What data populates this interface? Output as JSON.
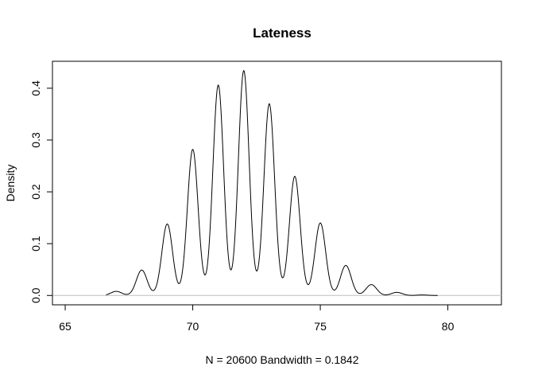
{
  "chart_data": {
    "type": "line",
    "title": "Lateness",
    "xlabel": "N = 20600   Bandwidth = 0.1842",
    "ylabel": "Density",
    "xlim": [
      64.5,
      82.1
    ],
    "ylim": [
      -0.018,
      0.452
    ],
    "xticks": [
      65,
      70,
      75,
      80
    ],
    "xtick_labels": [
      "65",
      "70",
      "75",
      "80"
    ],
    "yticks": [
      0.0,
      0.1,
      0.2,
      0.3,
      0.4
    ],
    "ytick_labels": [
      "0.0",
      "0.1",
      "0.2",
      "0.3",
      "0.4"
    ],
    "baseline": 0,
    "grid": false,
    "bandwidth": 0.1842,
    "series": [
      {
        "color": "#000000",
        "peaks_x": [
          67,
          68,
          69,
          70,
          71,
          72,
          73,
          74,
          75,
          76,
          77,
          78,
          79
        ],
        "peaks_y": [
          0.008,
          0.049,
          0.138,
          0.282,
          0.406,
          0.434,
          0.37,
          0.23,
          0.14,
          0.058,
          0.021,
          0.006,
          0.001
        ]
      }
    ]
  }
}
